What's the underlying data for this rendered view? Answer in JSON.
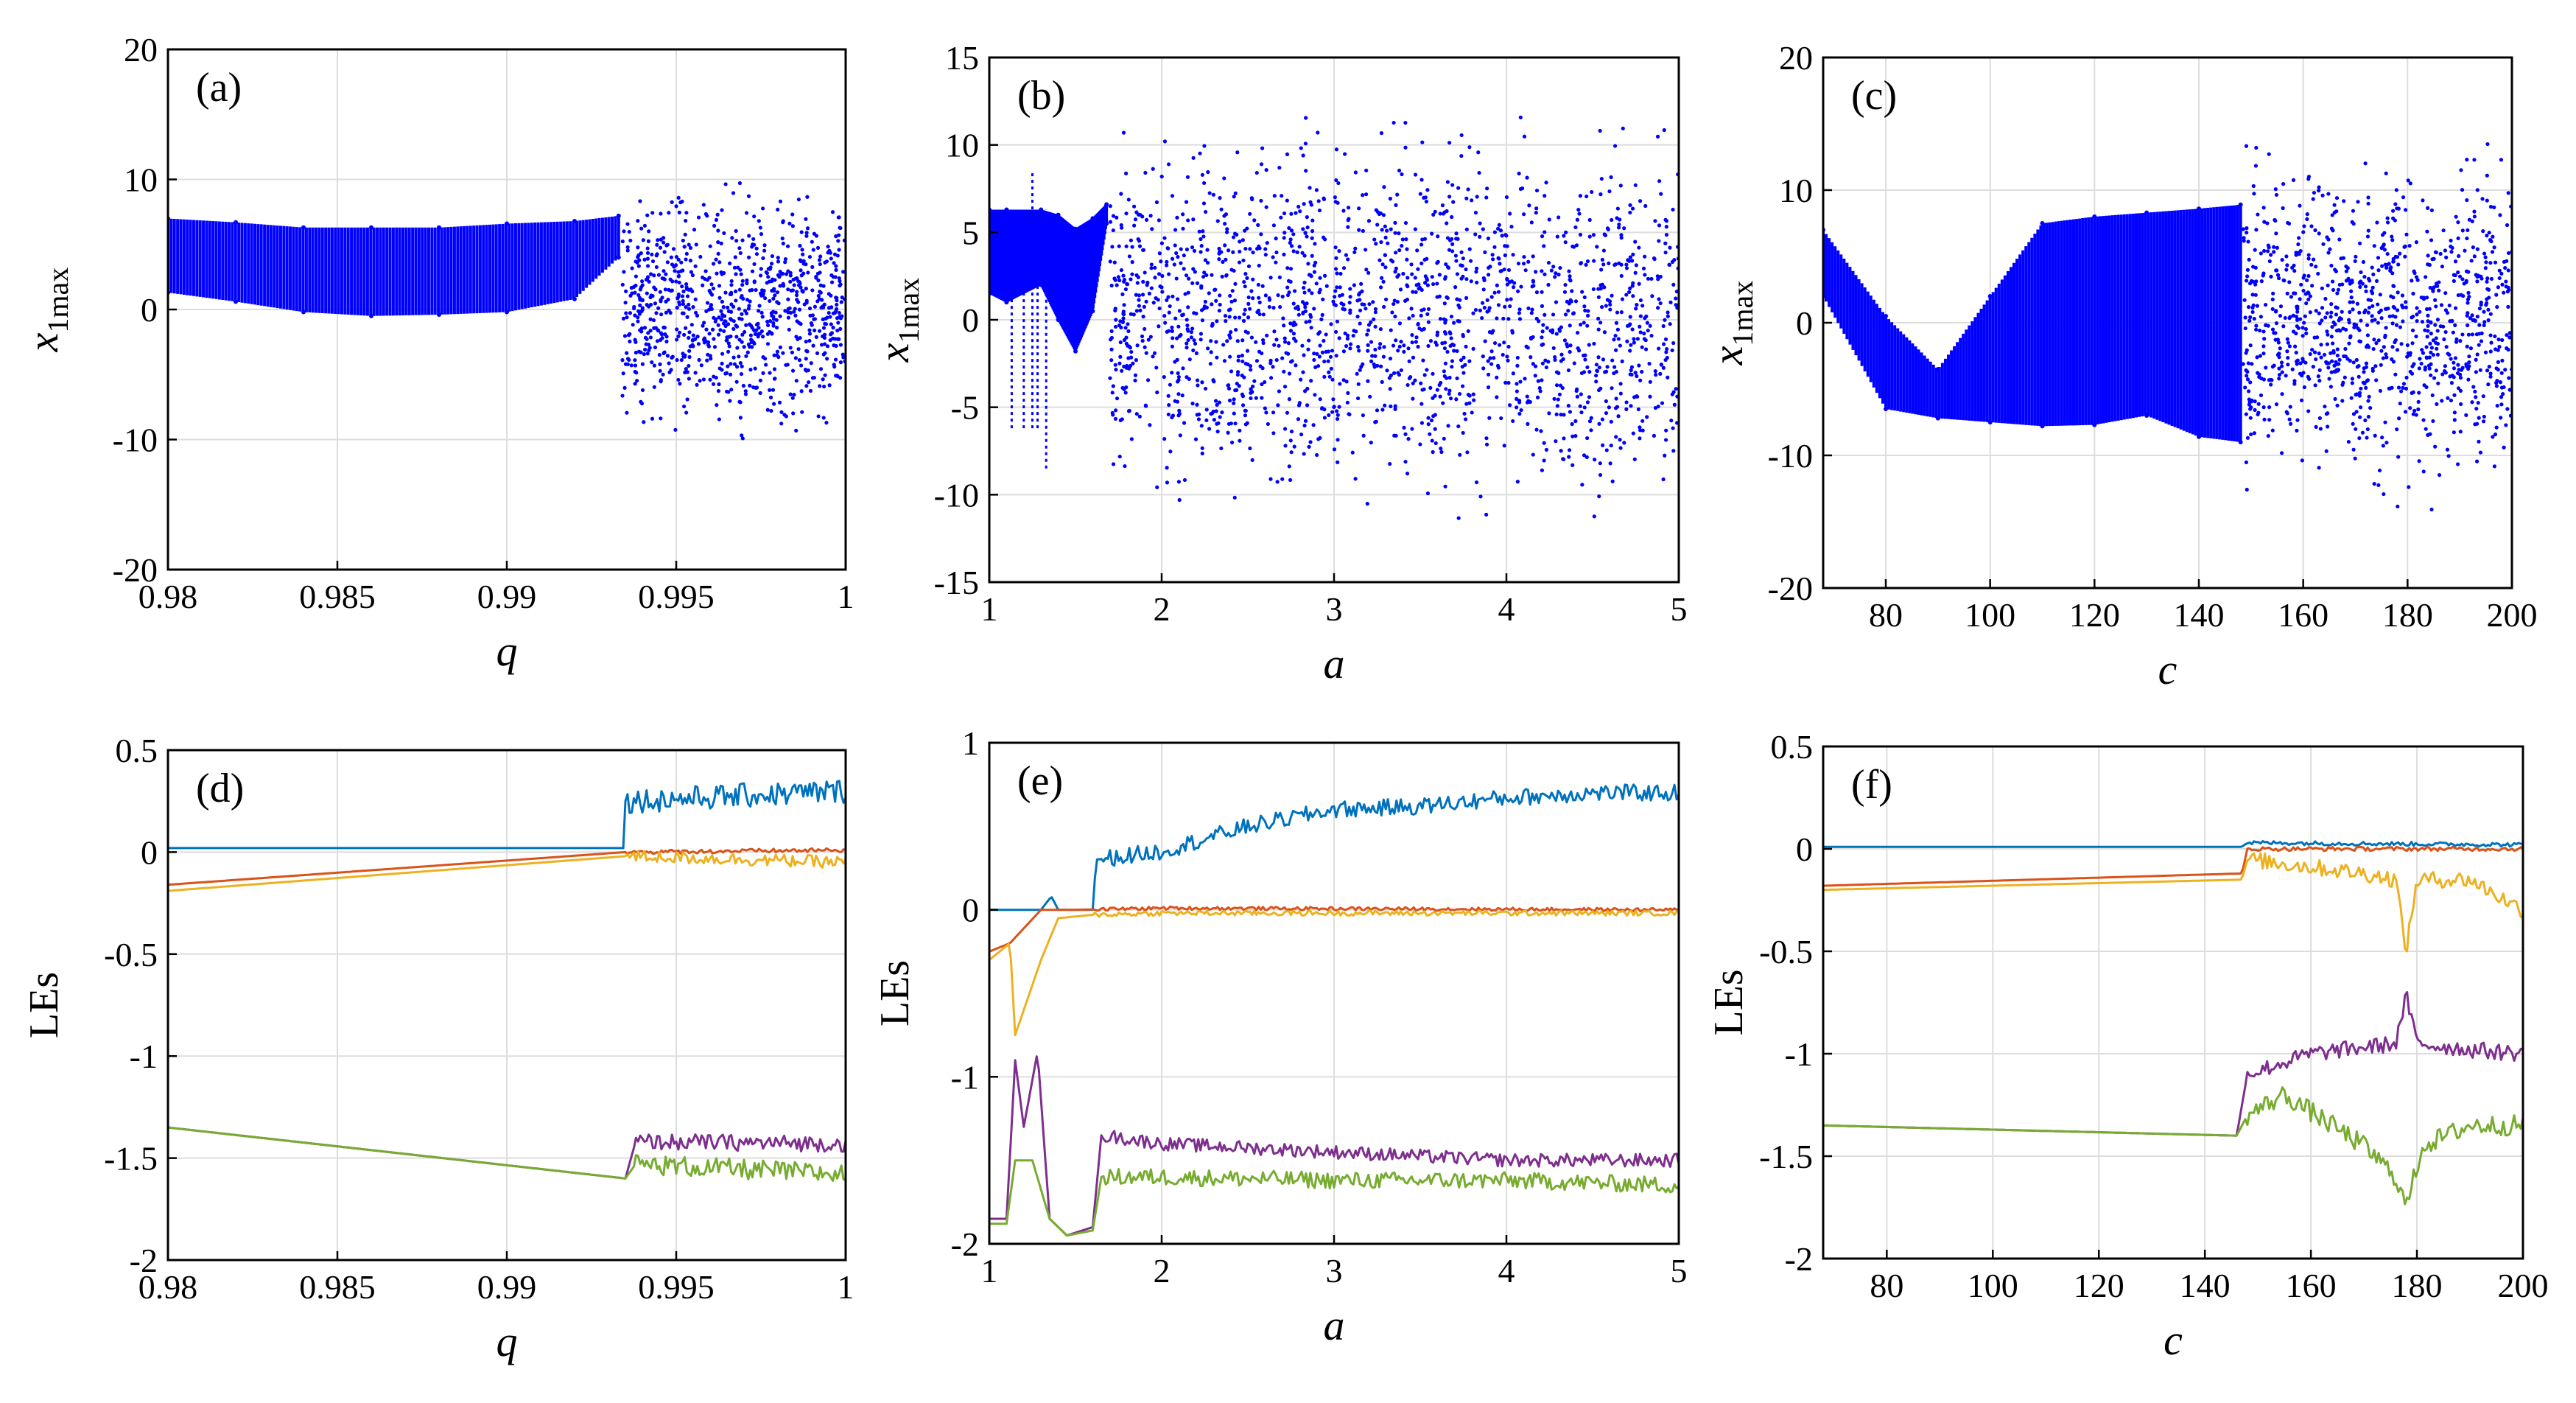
{
  "chart_data": [
    {
      "type": "scatter",
      "panel_label": "(a)",
      "xlabel": "q",
      "ylabel": "x",
      "ylabel_sub": "1max",
      "xlim": [
        0.98,
        1
      ],
      "ylim": [
        -20,
        20
      ],
      "xticks": [
        0.98,
        0.985,
        0.99,
        0.995,
        1
      ],
      "xtick_labels": [
        "0.98",
        "0.985",
        "0.99",
        "0.995",
        "1"
      ],
      "yticks": [
        -20,
        -10,
        0,
        10,
        20
      ],
      "ytick_labels": [
        "-20",
        "-10",
        "0",
        "10",
        "20"
      ],
      "grid": true,
      "color": "#0000ff",
      "band_edges": {
        "x": [
          0.98,
          0.982,
          0.984,
          0.986,
          0.988,
          0.99,
          0.992,
          0.9933
        ],
        "y_upper": [
          7.0,
          6.7,
          6.3,
          6.3,
          6.3,
          6.6,
          6.8,
          7.2
        ],
        "y_lower": [
          1.3,
          0.6,
          -0.2,
          -0.5,
          -0.4,
          -0.2,
          0.8,
          4.0
        ]
      },
      "chaotic_regions": [
        {
          "x_range": [
            0.9934,
            1.0
          ],
          "y_range": [
            -11.5,
            11.2
          ]
        }
      ]
    },
    {
      "type": "scatter",
      "panel_label": "(b)",
      "xlabel": "a",
      "ylabel": "x",
      "ylabel_sub": "1max",
      "xlim": [
        1,
        5
      ],
      "ylim": [
        -15,
        15
      ],
      "xticks": [
        1,
        2,
        3,
        4,
        5
      ],
      "xtick_labels": [
        "1",
        "2",
        "3",
        "4",
        "5"
      ],
      "yticks": [
        -15,
        -10,
        -5,
        0,
        5,
        10,
        15
      ],
      "ytick_labels": [
        "-15",
        "-10",
        "-5",
        "0",
        "5",
        "10",
        "15"
      ],
      "grid": true,
      "color": "#0000ff",
      "band_edges": {
        "x": [
          1.0,
          1.1,
          1.3,
          1.4,
          1.5,
          1.6,
          1.68
        ],
        "y_upper": [
          6.3,
          6.3,
          6.3,
          6.0,
          5.2,
          5.8,
          6.6
        ],
        "y_lower": [
          1.5,
          1.0,
          2.0,
          0.0,
          -1.8,
          0.5,
          5.5
        ]
      },
      "periodic_spikes": [
        {
          "x": 1.13,
          "y_range": [
            -6.2,
            6.3
          ]
        },
        {
          "x": 1.2,
          "y_range": [
            -6.2,
            6.3
          ]
        },
        {
          "x": 1.25,
          "y_range": [
            -6.2,
            8.5
          ]
        },
        {
          "x": 1.28,
          "y_range": [
            -6.2,
            6.3
          ]
        },
        {
          "x": 1.33,
          "y_range": [
            -8.5,
            6.3
          ]
        }
      ],
      "chaotic_regions": [
        {
          "x_range": [
            1.7,
            5.0
          ],
          "y_range": [
            -13,
            13.3
          ]
        }
      ]
    },
    {
      "type": "scatter",
      "panel_label": "(c)",
      "xlabel": "c",
      "ylabel": "x",
      "ylabel_sub": "1max",
      "xlim": [
        68,
        200
      ],
      "ylim": [
        -20,
        20
      ],
      "xticks": [
        80,
        100,
        120,
        140,
        160,
        180,
        200
      ],
      "xtick_labels": [
        "80",
        "100",
        "120",
        "140",
        "160",
        "180",
        "200"
      ],
      "yticks": [
        -20,
        -10,
        0,
        10,
        20
      ],
      "ytick_labels": [
        "-20",
        "-10",
        "0",
        "10",
        "20"
      ],
      "grid": true,
      "color": "#0000ff",
      "band_edges": {
        "x": [
          68,
          80,
          90,
          100,
          110,
          120,
          130,
          140,
          148
        ],
        "y_upper": [
          7.0,
          0.5,
          -3.5,
          2.0,
          7.5,
          8.0,
          8.3,
          8.6,
          8.9
        ],
        "y_lower": [
          2.0,
          -6.5,
          -7.2,
          -7.5,
          -7.8,
          -7.7,
          -7.0,
          -8.6,
          -9.0
        ]
      },
      "chaotic_regions": [
        {
          "x_range": [
            148.5,
            200
          ],
          "y_range": [
            -15,
            15.3
          ]
        }
      ]
    },
    {
      "type": "line",
      "panel_label": "(d)",
      "xlabel": "q",
      "ylabel": "LEs",
      "xlim": [
        0.98,
        1
      ],
      "ylim": [
        -2,
        0.5
      ],
      "xticks": [
        0.98,
        0.985,
        0.99,
        0.995,
        1
      ],
      "xtick_labels": [
        "0.98",
        "0.985",
        "0.99",
        "0.995",
        "1"
      ],
      "yticks": [
        -2,
        -1.5,
        -1,
        -0.5,
        0,
        0.5
      ],
      "ytick_labels": [
        "-2",
        "-1.5",
        "-1",
        "-0.5",
        "0",
        "0.5"
      ],
      "grid": true,
      "series": [
        {
          "color": "#0072bd",
          "x": [
            0.98,
            0.99345,
            0.9935,
            1.0
          ],
          "y": [
            0.02,
            0.02,
            0.25,
            0.3
          ],
          "noise_from": 0.9935,
          "noise_amp": 0.06
        },
        {
          "color": "#d95319",
          "x": [
            0.98,
            0.9935,
            1.0
          ],
          "y": [
            -0.16,
            0.0,
            0.01
          ],
          "noise_from": 0.9935,
          "noise_amp": 0.01
        },
        {
          "color": "#edb120",
          "x": [
            0.98,
            0.9935,
            1.0
          ],
          "y": [
            -0.19,
            -0.02,
            -0.05
          ],
          "noise_from": 0.9935,
          "noise_amp": 0.03
        },
        {
          "color": "#7e2f8e",
          "x": [
            0.98,
            0.9935,
            0.9938,
            1.0
          ],
          "y": [
            -1.35,
            -1.6,
            -1.42,
            -1.43
          ],
          "noise_from": 0.9938,
          "noise_amp": 0.04
        },
        {
          "color": "#77ac30",
          "x": [
            0.98,
            0.9935,
            0.9938,
            1.0
          ],
          "y": [
            -1.35,
            -1.6,
            -1.53,
            -1.58
          ],
          "noise_from": 0.9938,
          "noise_amp": 0.05
        }
      ]
    },
    {
      "type": "line",
      "panel_label": "(e)",
      "xlabel": "a",
      "ylabel": "LEs",
      "xlim": [
        1,
        5
      ],
      "ylim": [
        -2,
        1
      ],
      "xticks": [
        1,
        2,
        3,
        4,
        5
      ],
      "xtick_labels": [
        "1",
        "2",
        "3",
        "4",
        "5"
      ],
      "yticks": [
        -2,
        -1,
        0,
        1
      ],
      "ytick_labels": [
        "-2",
        "-1",
        "0",
        "1"
      ],
      "grid": true,
      "series": [
        {
          "color": "#0072bd",
          "x": [
            1.0,
            1.3,
            1.36,
            1.4,
            1.6,
            1.62,
            2.0,
            2.5,
            3.0,
            3.5,
            4.0,
            4.5,
            5.0
          ],
          "y": [
            0.0,
            0.0,
            0.08,
            0.0,
            0.0,
            0.3,
            0.35,
            0.5,
            0.6,
            0.62,
            0.67,
            0.7,
            0.7
          ],
          "noise_from": 1.65,
          "noise_amp": 0.05
        },
        {
          "color": "#d95319",
          "x": [
            1.0,
            1.12,
            1.3,
            1.5,
            2.0,
            5.0
          ],
          "y": [
            -0.25,
            -0.2,
            0.0,
            0.0,
            0.01,
            0.0
          ],
          "noise_from": 1.6,
          "noise_amp": 0.01
        },
        {
          "color": "#edb120",
          "x": [
            1.0,
            1.12,
            1.15,
            1.3,
            1.4,
            1.6,
            2.0,
            5.0
          ],
          "y": [
            -0.3,
            -0.2,
            -0.75,
            -0.3,
            -0.05,
            -0.03,
            -0.02,
            -0.02
          ],
          "noise_from": 1.6,
          "noise_amp": 0.015
        },
        {
          "color": "#7e2f8e",
          "x": [
            1.0,
            1.1,
            1.15,
            1.2,
            1.28,
            1.35,
            1.45,
            1.6,
            1.65,
            2.0,
            3.0,
            4.0,
            5.0
          ],
          "y": [
            -1.85,
            -1.85,
            -0.9,
            -1.3,
            -0.85,
            -1.85,
            -1.95,
            -1.9,
            -1.35,
            -1.4,
            -1.45,
            -1.5,
            -1.5
          ],
          "noise_from": 1.65,
          "noise_amp": 0.04
        },
        {
          "color": "#77ac30",
          "x": [
            1.0,
            1.1,
            1.15,
            1.25,
            1.35,
            1.45,
            1.6,
            1.65,
            2.0,
            3.0,
            4.0,
            5.0
          ],
          "y": [
            -1.88,
            -1.88,
            -1.5,
            -1.5,
            -1.85,
            -1.95,
            -1.92,
            -1.6,
            -1.6,
            -1.62,
            -1.62,
            -1.65
          ],
          "noise_from": 1.65,
          "noise_amp": 0.05
        }
      ]
    },
    {
      "type": "line",
      "panel_label": "(f)",
      "xlabel": "c",
      "ylabel": "LEs",
      "xlim": [
        68,
        200
      ],
      "ylim": [
        -2,
        0.5
      ],
      "xticks": [
        80,
        100,
        120,
        140,
        160,
        180,
        200
      ],
      "xtick_labels": [
        "80",
        "100",
        "120",
        "140",
        "160",
        "180",
        "200"
      ],
      "yticks": [
        -2,
        -1.5,
        -1,
        -0.5,
        0,
        0.5
      ],
      "ytick_labels": [
        "-2",
        "-1.5",
        "-1",
        "-0.5",
        "0",
        "0.5"
      ],
      "grid": true,
      "series": [
        {
          "color": "#0072bd",
          "x": [
            68,
            147,
            148,
            200
          ],
          "y": [
            0.01,
            0.01,
            0.03,
            0.02
          ],
          "noise_from": 148,
          "noise_amp": 0.01
        },
        {
          "color": "#d95319",
          "x": [
            68,
            147,
            148,
            200
          ],
          "y": [
            -0.18,
            -0.12,
            0.0,
            0.0
          ],
          "noise_from": 148,
          "noise_amp": 0.01
        },
        {
          "color": "#edb120",
          "x": [
            68,
            147,
            148,
            170,
            176,
            178,
            180,
            190,
            200
          ],
          "y": [
            -0.2,
            -0.15,
            -0.05,
            -0.12,
            -0.15,
            -0.5,
            -0.15,
            -0.15,
            -0.3
          ],
          "noise_from": 148,
          "noise_amp": 0.04
        },
        {
          "color": "#7e2f8e",
          "x": [
            68,
            146,
            148,
            160,
            176,
            178,
            180,
            190,
            200
          ],
          "y": [
            -1.35,
            -1.4,
            -1.1,
            -1.0,
            -0.95,
            -0.72,
            -0.95,
            -0.98,
            -1.0
          ],
          "noise_from": 148,
          "noise_amp": 0.04
        },
        {
          "color": "#77ac30",
          "x": [
            68,
            146,
            148,
            155,
            170,
            176,
            178,
            181,
            190,
            200
          ],
          "y": [
            -1.35,
            -1.4,
            -1.3,
            -1.2,
            -1.45,
            -1.6,
            -1.75,
            -1.45,
            -1.35,
            -1.35
          ],
          "noise_from": 148,
          "noise_amp": 0.05
        }
      ]
    }
  ]
}
